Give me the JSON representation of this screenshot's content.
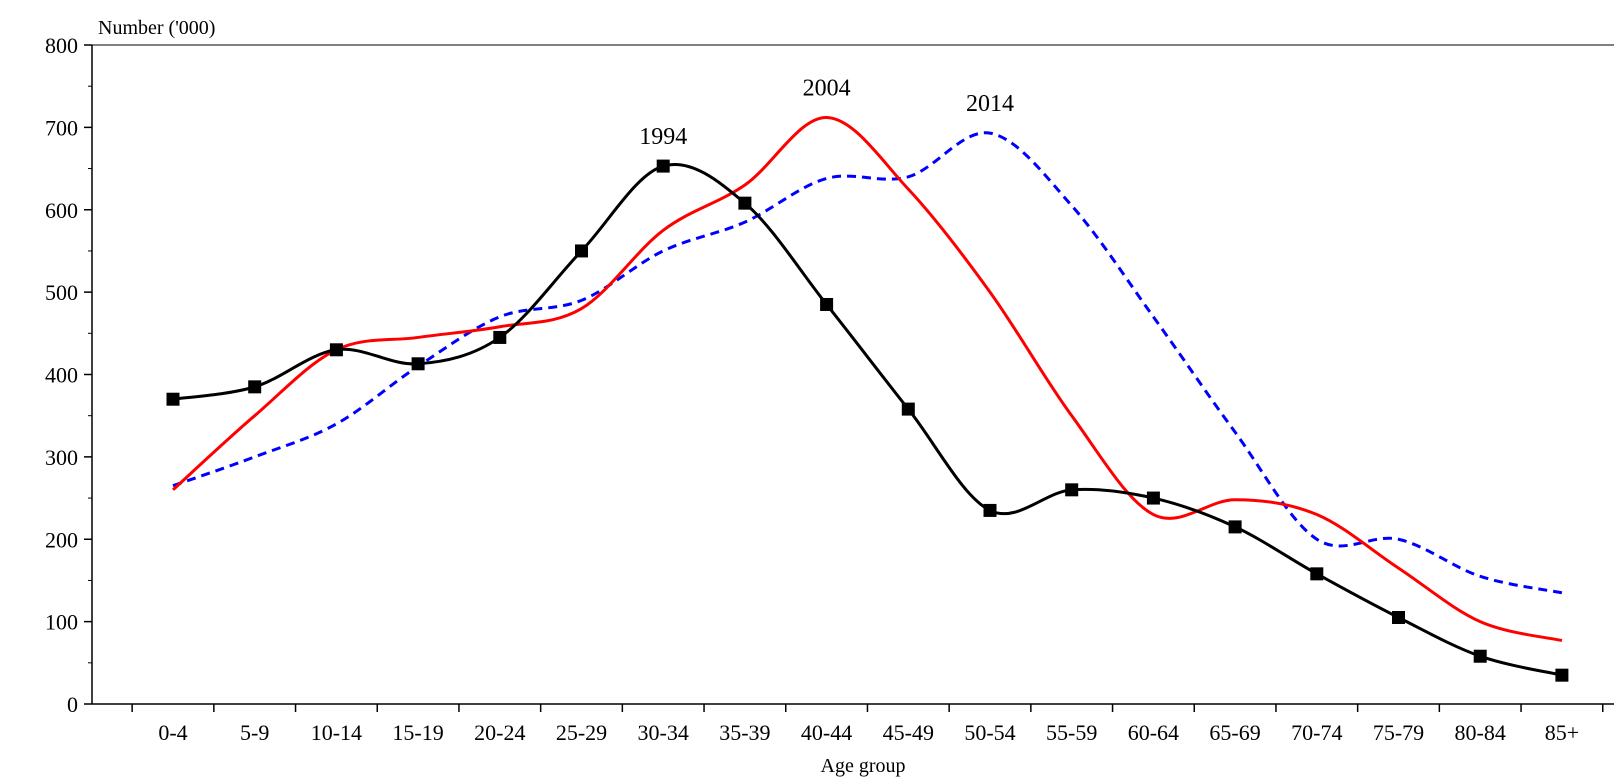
{
  "chart_data": {
    "type": "line",
    "title": "",
    "ylabel": "Number ('000)",
    "xlabel": "Age group",
    "ylim": [
      0,
      800
    ],
    "yticks": [
      0,
      100,
      200,
      300,
      400,
      500,
      600,
      700,
      800
    ],
    "grid": false,
    "legend": "none",
    "categories": [
      "0-4",
      "5-9",
      "10-14",
      "15-19",
      "20-24",
      "25-29",
      "30-34",
      "35-39",
      "40-44",
      "45-49",
      "50-54",
      "55-59",
      "60-64",
      "65-69",
      "70-74",
      "75-79",
      "80-84",
      "85+"
    ],
    "series": [
      {
        "name": "1994",
        "color": "#000000",
        "style": "solid",
        "marker": "square",
        "values": [
          370,
          385,
          430,
          413,
          445,
          550,
          653,
          608,
          485,
          358,
          235,
          260,
          250,
          215,
          158,
          105,
          58,
          35
        ]
      },
      {
        "name": "2004",
        "color": "#ff0000",
        "style": "solid",
        "marker": "none",
        "values": [
          260,
          350,
          430,
          445,
          458,
          480,
          575,
          630,
          712,
          625,
          500,
          350,
          230,
          248,
          230,
          165,
          100,
          77
        ]
      },
      {
        "name": "2014",
        "color": "#0000ff",
        "style": "dashed",
        "marker": "none",
        "values": [
          265,
          300,
          340,
          410,
          470,
          490,
          550,
          585,
          638,
          640,
          693,
          605,
          470,
          330,
          200,
          200,
          155,
          135
        ]
      }
    ]
  }
}
